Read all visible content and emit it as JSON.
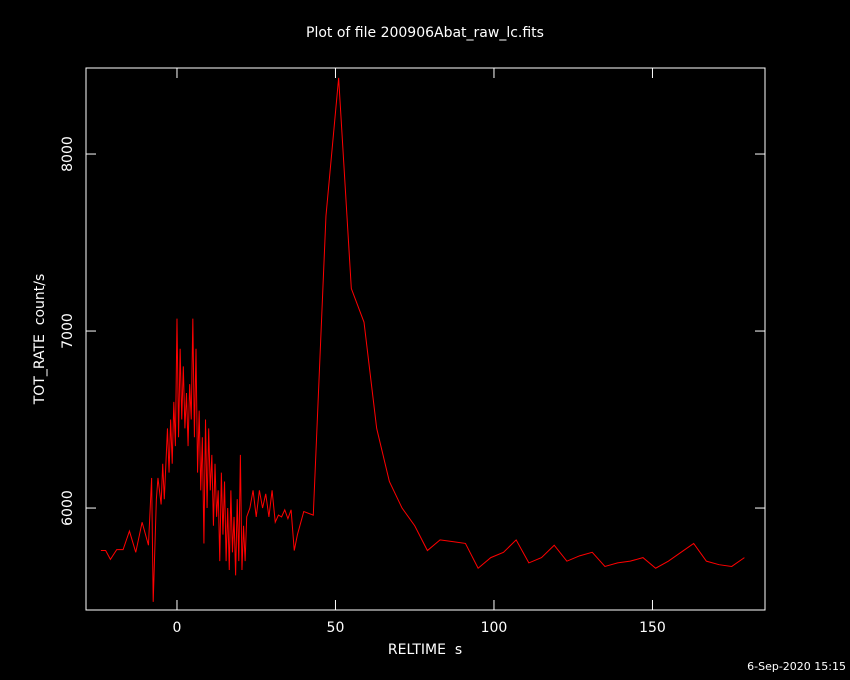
{
  "chart_data": {
    "type": "line",
    "title": "Plot of file 200906Abat_raw_lc.fits",
    "x_label": "RELTIME  s",
    "y_label": "TOT_RATE  count/s",
    "timestamp": "6-Sep-2020 15:15",
    "color": "#ff0000",
    "x": [
      -24,
      -22.5,
      -21,
      -19,
      -17,
      -15,
      -13,
      -11,
      -9,
      -8,
      -7.5,
      -6.5,
      -6,
      -5,
      -4.5,
      -4,
      -3,
      -2.5,
      -2,
      -1.5,
      -1,
      -0.5,
      0,
      0.5,
      1,
      1.5,
      2,
      2.5,
      3,
      3.5,
      4,
      4.5,
      5,
      5.5,
      6,
      6.5,
      7,
      7.5,
      8,
      8.5,
      9,
      9.5,
      10,
      10.5,
      11,
      11.5,
      12,
      12.5,
      13,
      13.5,
      14,
      14.5,
      15,
      15.5,
      16,
      16.5,
      17,
      17.5,
      18,
      18.5,
      19,
      19.5,
      20,
      20.5,
      21,
      21.5,
      22,
      23,
      24,
      25,
      26,
      27,
      28,
      29,
      30,
      31,
      32,
      33,
      34,
      35,
      36,
      37,
      38,
      40,
      43,
      47,
      51,
      55,
      59,
      63,
      67,
      71,
      75,
      79,
      83,
      87,
      91,
      95,
      99,
      103,
      107,
      111,
      115,
      119,
      123,
      127,
      131,
      135,
      139,
      143,
      147,
      151,
      155,
      159,
      163,
      167,
      171,
      175,
      179
    ],
    "values": [
      5760,
      5760,
      5710,
      5765,
      5765,
      5870,
      5750,
      5920,
      5790,
      6170,
      5470,
      6050,
      6170,
      6020,
      6250,
      6050,
      6450,
      6200,
      6500,
      6250,
      6600,
      6350,
      7070,
      6400,
      6900,
      6500,
      6800,
      6450,
      6650,
      6350,
      6700,
      6500,
      7070,
      6400,
      6900,
      6200,
      6550,
      6100,
      6400,
      5800,
      6500,
      6000,
      6450,
      6100,
      6300,
      5900,
      6250,
      5950,
      6100,
      5700,
      6200,
      5850,
      6150,
      5700,
      6000,
      5650,
      6100,
      5750,
      5950,
      5620,
      6050,
      5700,
      6300,
      5650,
      5900,
      5700,
      5950,
      6000,
      6100,
      5950,
      6100,
      6000,
      6080,
      5950,
      6100,
      5920,
      5960,
      5950,
      5990,
      5940,
      5990,
      5760,
      5850,
      5980,
      5960,
      7650,
      8430,
      7240,
      7050,
      6450,
      6150,
      6000,
      5900,
      5760,
      5820,
      5810,
      5800,
      5660,
      5720,
      5750,
      5820,
      5690,
      5720,
      5790,
      5700,
      5730,
      5750,
      5670,
      5690,
      5700,
      5720,
      5660,
      5700,
      5750,
      5800,
      5700,
      5680,
      5670,
      5720
    ],
    "xlim": [
      -28.7,
      185.5
    ],
    "ylim": [
      5424,
      8486
    ],
    "xticks": [
      0,
      50,
      100,
      150
    ],
    "yticks": [
      6000,
      7000,
      8000
    ]
  }
}
